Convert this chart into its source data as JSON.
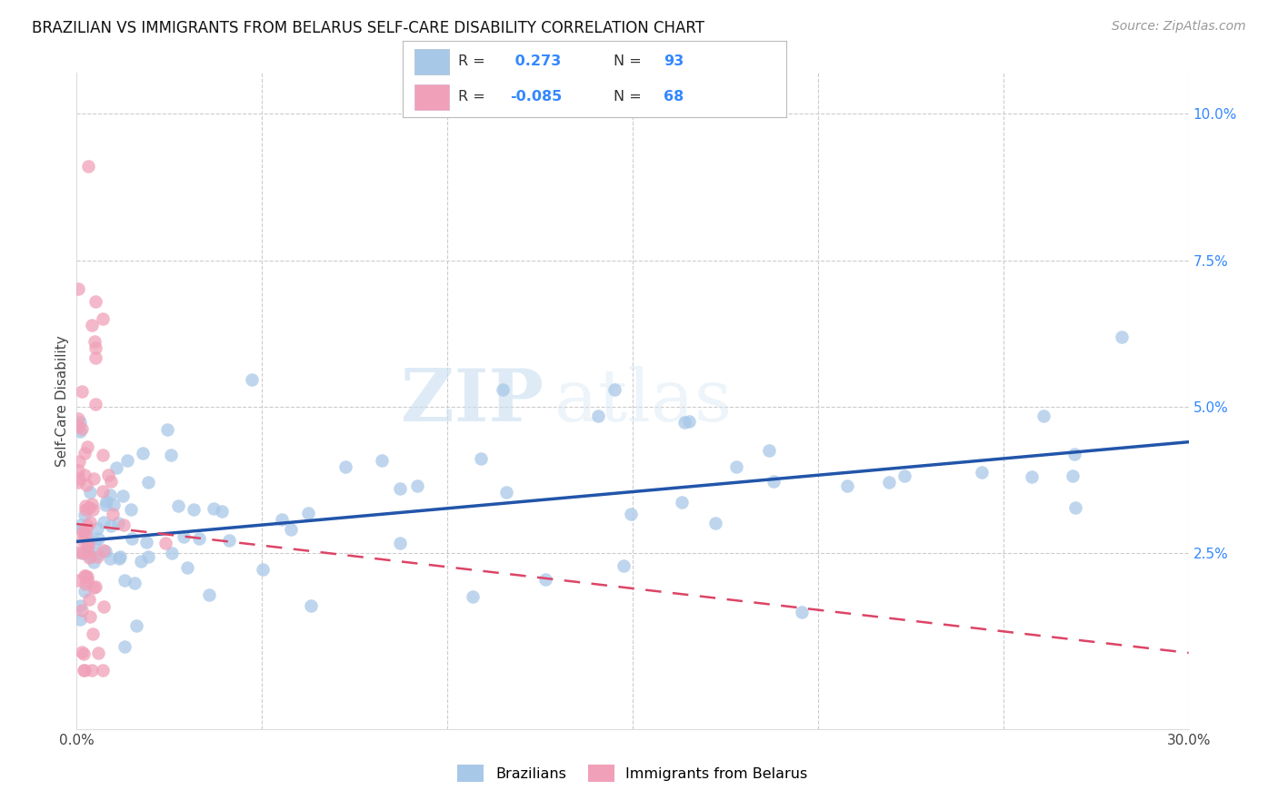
{
  "title": "BRAZILIAN VS IMMIGRANTS FROM BELARUS SELF-CARE DISABILITY CORRELATION CHART",
  "source": "Source: ZipAtlas.com",
  "ylabel": "Self-Care Disability",
  "xlim": [
    0.0,
    0.3
  ],
  "ylim": [
    -0.005,
    0.107
  ],
  "y_ticks_right": [
    0.025,
    0.05,
    0.075,
    0.1
  ],
  "y_tick_labels_right": [
    "2.5%",
    "5.0%",
    "7.5%",
    "10.0%"
  ],
  "grid_color": "#cccccc",
  "background_color": "#ffffff",
  "watermark_zip": "ZIP",
  "watermark_atlas": "atlas",
  "blue_color": "#a8c8e8",
  "pink_color": "#f0a0b8",
  "blue_line_color": "#2255aa",
  "pink_line_color": "#dd4466",
  "legend_R1": " 0.273",
  "legend_N1": "93",
  "legend_R2": "-0.085",
  "legend_N2": "68",
  "blue_trend_x0": 0.0,
  "blue_trend_y0": 0.027,
  "blue_trend_x1": 0.3,
  "blue_trend_y1": 0.044,
  "pink_trend_x0": 0.0,
  "pink_trend_y0": 0.03,
  "pink_trend_x1": 0.3,
  "pink_trend_y1": 0.008
}
